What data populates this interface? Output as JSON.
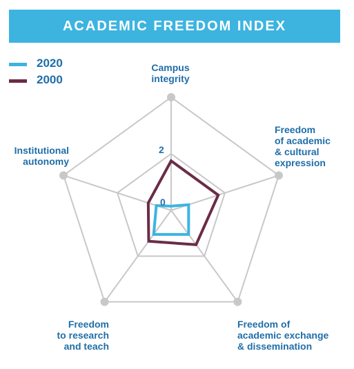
{
  "title": "ACADEMIC FREEDOM INDEX",
  "colors": {
    "title_bg": "#3db4e0",
    "series_2020": "#3db4e0",
    "series_2000": "#6a2c47",
    "grid": "#c8c8c8",
    "label": "#1f6ea8"
  },
  "legend": [
    {
      "label": "2020",
      "color": "#3db4e0"
    },
    {
      "label": "2000",
      "color": "#6a2c47"
    }
  ],
  "axes": [
    [
      "Campus",
      "integrity"
    ],
    [
      "Freedom",
      "of academic",
      "& cultural",
      "expression"
    ],
    [
      "Freedom of",
      "academic exchange",
      "& dissemination"
    ],
    [
      "Freedom",
      "to research",
      "and teach"
    ],
    [
      "Institutional",
      "autonomy"
    ]
  ],
  "ticks": [
    "0",
    "2"
  ],
  "chart_data": {
    "type": "radar",
    "title": "ACADEMIC FREEDOM INDEX",
    "categories": [
      "Campus integrity",
      "Freedom of academic & cultural expression",
      "Freedom of academic exchange & dissemination",
      "Freedom to research and teach",
      "Institutional autonomy"
    ],
    "series": [
      {
        "name": "2020",
        "values": [
          0.15,
          0.65,
          1.05,
          1.05,
          0.55
        ]
      },
      {
        "name": "2000",
        "values": [
          1.75,
          1.75,
          1.5,
          1.35,
          0.85
        ]
      }
    ],
    "range": [
      0,
      4
    ],
    "ticks": [
      0,
      2
    ],
    "grid_levels": 2,
    "legend_position": "top-left"
  }
}
